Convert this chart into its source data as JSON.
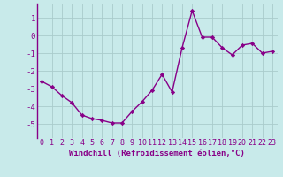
{
  "x": [
    0,
    1,
    2,
    3,
    4,
    5,
    6,
    7,
    8,
    9,
    10,
    11,
    12,
    13,
    14,
    15,
    16,
    17,
    18,
    19,
    20,
    21,
    22,
    23
  ],
  "y": [
    -2.6,
    -2.9,
    -3.4,
    -3.8,
    -4.5,
    -4.7,
    -4.8,
    -4.95,
    -4.95,
    -4.3,
    -3.75,
    -3.1,
    -2.2,
    -3.2,
    -0.7,
    1.4,
    -0.1,
    -0.1,
    -0.7,
    -1.1,
    -0.55,
    -0.45,
    -1.0,
    -0.9
  ],
  "line_color": "#880088",
  "marker": "D",
  "markersize": 2.2,
  "bg_color": "#c8eaea",
  "grid_color": "#aacccc",
  "xlabel": "Windchill (Refroidissement éolien,°C)",
  "xlabel_color": "#880088",
  "tick_color": "#880088",
  "label_color": "#880088",
  "ylim": [
    -5.8,
    1.8
  ],
  "xlim": [
    -0.5,
    23.5
  ],
  "yticks": [
    -5,
    -4,
    -3,
    -2,
    -1,
    0,
    1
  ],
  "xticks": [
    0,
    1,
    2,
    3,
    4,
    5,
    6,
    7,
    8,
    9,
    10,
    11,
    12,
    13,
    14,
    15,
    16,
    17,
    18,
    19,
    20,
    21,
    22,
    23
  ],
  "linewidth": 1.0,
  "xlabel_fontsize": 6.5,
  "tick_fontsize": 6,
  "ytick_fontsize": 6.5,
  "spine_color": "#880088"
}
